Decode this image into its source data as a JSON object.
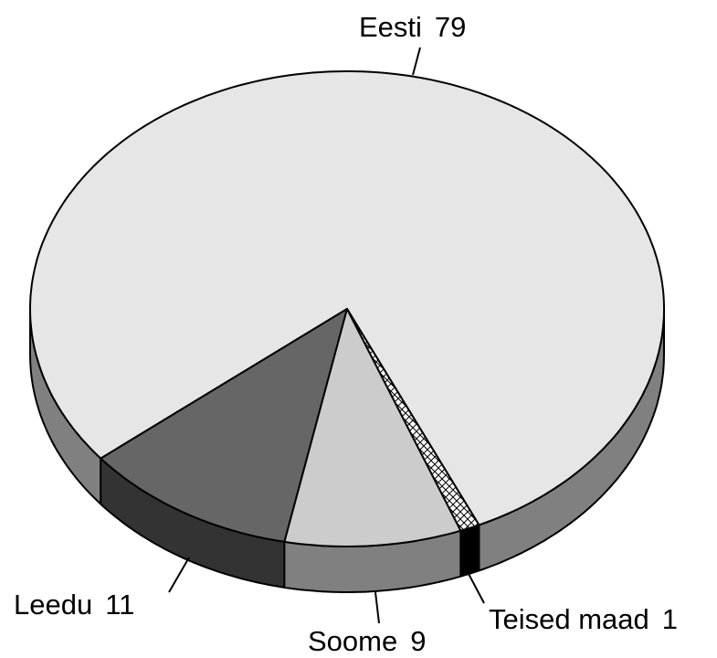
{
  "chart_data": {
    "type": "pie3d",
    "categories": [
      "Eesti",
      "Leedu",
      "Soome",
      "Teised maad"
    ],
    "values": [
      79,
      11,
      9,
      1
    ],
    "colors": [
      "#e6e6e6",
      "#666666",
      "#cccccc",
      "#ffffff"
    ],
    "side_colors": [
      "#808080",
      "#333333",
      "#808080",
      "#000000"
    ],
    "patterns": [
      null,
      null,
      null,
      "crosshatch"
    ]
  }
}
